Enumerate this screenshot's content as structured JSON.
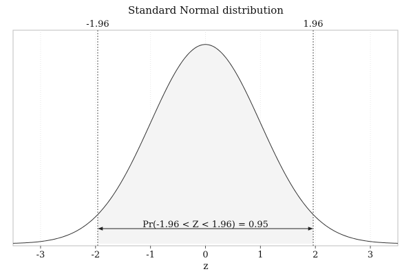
{
  "chart_data": {
    "type": "area",
    "title": "Standard Normal distribution",
    "xlabel": "z",
    "ylabel": "",
    "xlim": [
      -3.5,
      3.5
    ],
    "ylim": [
      0,
      0.4
    ],
    "xticks": [
      -3,
      -2,
      -1,
      0,
      1,
      2,
      3
    ],
    "xtick_labels": [
      "-3",
      "-2",
      "-1",
      "0",
      "1",
      "2",
      "3"
    ],
    "grid": {
      "vertical": true,
      "horizontal": false
    },
    "series": [
      {
        "type": "line",
        "function": "standard-normal-pdf",
        "x": [
          -3.5,
          -3,
          -2.5,
          -2,
          -1.96,
          -1.5,
          -1,
          -0.5,
          0,
          0.5,
          1,
          1.5,
          1.96,
          2,
          2.5,
          3,
          3.5
        ],
        "y": [
          0.0009,
          0.0044,
          0.0175,
          0.054,
          0.0584,
          0.1295,
          0.242,
          0.3521,
          0.3989,
          0.3521,
          0.242,
          0.1295,
          0.0584,
          0.054,
          0.0175,
          0.0044,
          0.0009
        ],
        "color": "#333333"
      }
    ],
    "shaded_region": {
      "from": -1.96,
      "to": 1.96,
      "color": "#f4f4f4"
    },
    "critical_values": [
      {
        "x": -1.96,
        "label": "-1.96"
      },
      {
        "x": 1.96,
        "label": "1.96"
      }
    ],
    "annotation": {
      "text": "Pr(-1.96 < Z < 1.96) = 0.95",
      "x_from": -1.96,
      "x_to": 1.96,
      "y": 0.029
    }
  }
}
